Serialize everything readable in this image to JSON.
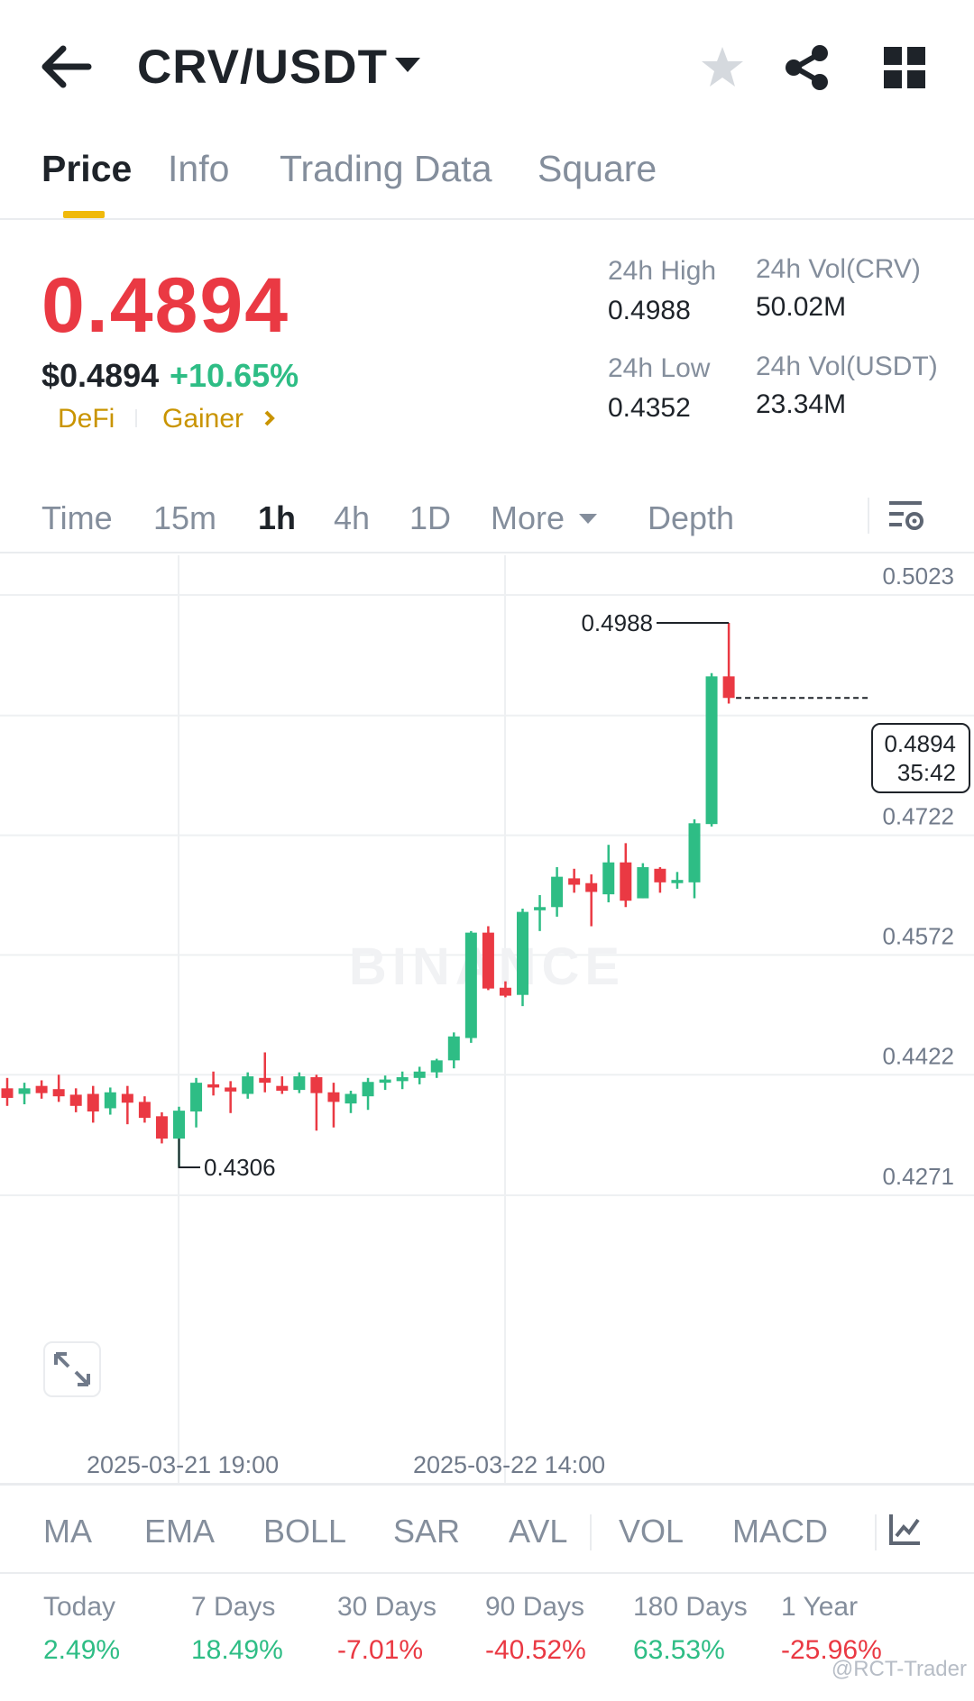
{
  "header": {
    "pair": "CRV/USDT",
    "icons": {
      "back": "arrow-left-icon",
      "favorite": "star-icon",
      "share": "share-icon",
      "grid": "grid-icon"
    }
  },
  "tabs": [
    {
      "label": "Price",
      "active": true
    },
    {
      "label": "Info"
    },
    {
      "label": "Trading Data"
    },
    {
      "label": "Square"
    }
  ],
  "price": {
    "last": "0.4894",
    "usd": "$0.4894",
    "change": "+10.65%",
    "tags": [
      "DeFi",
      "Gainer"
    ],
    "colors": {
      "down": "#ea3943",
      "up": "#2ebd85",
      "tag": "#c99400"
    }
  },
  "stats": {
    "high_label": "24h High",
    "high": "0.4988",
    "low_label": "24h Low",
    "low": "0.4352",
    "vol_base_label": "24h Vol(CRV)",
    "vol_base": "50.02M",
    "vol_quote_label": "24h Vol(USDT)",
    "vol_quote": "23.34M"
  },
  "toolbar": {
    "items": [
      "Time",
      "15m",
      "1h",
      "4h",
      "1D",
      "More",
      "Depth"
    ],
    "active": "1h",
    "settings_icon": "chart-settings-icon"
  },
  "chart_labels": {
    "watermark": "BINANCE",
    "y_ticks": [
      "0.5023",
      "0.4722",
      "0.4572",
      "0.4422",
      "0.4271"
    ],
    "x_ticks": [
      "2025-03-21 19:00",
      "2025-03-22 14:00"
    ],
    "high_marker": "0.4988",
    "low_marker": "0.4306",
    "current_price": "0.4894",
    "countdown": "35:42"
  },
  "chart_data": {
    "type": "candlestick",
    "ylim": [
      0.4271,
      0.5023
    ],
    "y_ticks": [
      0.5023,
      0.4722,
      0.4572,
      0.4422,
      0.4271
    ],
    "x_ticks": [
      "2025-03-21 19:00",
      "2025-03-22 14:00"
    ],
    "candles": [
      {
        "o": 0.4405,
        "h": 0.4418,
        "l": 0.4383,
        "c": 0.4393
      },
      {
        "o": 0.4398,
        "h": 0.4412,
        "l": 0.4385,
        "c": 0.4405
      },
      {
        "o": 0.4408,
        "h": 0.4415,
        "l": 0.4392,
        "c": 0.4399
      },
      {
        "o": 0.4404,
        "h": 0.4422,
        "l": 0.4388,
        "c": 0.4395
      },
      {
        "o": 0.4397,
        "h": 0.4405,
        "l": 0.4375,
        "c": 0.4383
      },
      {
        "o": 0.4398,
        "h": 0.4408,
        "l": 0.4362,
        "c": 0.4376
      },
      {
        "o": 0.438,
        "h": 0.4406,
        "l": 0.4372,
        "c": 0.44
      },
      {
        "o": 0.4398,
        "h": 0.4408,
        "l": 0.436,
        "c": 0.4387
      },
      {
        "o": 0.4388,
        "h": 0.4395,
        "l": 0.4362,
        "c": 0.4368
      },
      {
        "o": 0.437,
        "h": 0.4375,
        "l": 0.4336,
        "c": 0.4342
      },
      {
        "o": 0.4342,
        "h": 0.4382,
        "l": 0.4306,
        "c": 0.4377
      },
      {
        "o": 0.4376,
        "h": 0.4418,
        "l": 0.4356,
        "c": 0.4412
      },
      {
        "o": 0.441,
        "h": 0.4426,
        "l": 0.4396,
        "c": 0.4406
      },
      {
        "o": 0.4406,
        "h": 0.4414,
        "l": 0.4374,
        "c": 0.4401
      },
      {
        "o": 0.4398,
        "h": 0.4425,
        "l": 0.4392,
        "c": 0.442
      },
      {
        "o": 0.4418,
        "h": 0.445,
        "l": 0.44,
        "c": 0.4412
      },
      {
        "o": 0.4408,
        "h": 0.442,
        "l": 0.4398,
        "c": 0.4402
      },
      {
        "o": 0.4403,
        "h": 0.4425,
        "l": 0.4399,
        "c": 0.442
      },
      {
        "o": 0.4419,
        "h": 0.4422,
        "l": 0.4352,
        "c": 0.4399
      },
      {
        "o": 0.44,
        "h": 0.4412,
        "l": 0.4356,
        "c": 0.4388
      },
      {
        "o": 0.4386,
        "h": 0.4402,
        "l": 0.4374,
        "c": 0.4398
      },
      {
        "o": 0.4395,
        "h": 0.4418,
        "l": 0.4378,
        "c": 0.4413
      },
      {
        "o": 0.4412,
        "h": 0.4421,
        "l": 0.4403,
        "c": 0.4416
      },
      {
        "o": 0.4414,
        "h": 0.4426,
        "l": 0.4404,
        "c": 0.4419
      },
      {
        "o": 0.4418,
        "h": 0.4432,
        "l": 0.441,
        "c": 0.4426
      },
      {
        "o": 0.4425,
        "h": 0.4442,
        "l": 0.4418,
        "c": 0.444
      },
      {
        "o": 0.444,
        "h": 0.4475,
        "l": 0.443,
        "c": 0.447
      },
      {
        "o": 0.4468,
        "h": 0.4602,
        "l": 0.4462,
        "c": 0.46
      },
      {
        "o": 0.46,
        "h": 0.4608,
        "l": 0.4528,
        "c": 0.453
      },
      {
        "o": 0.4531,
        "h": 0.4539,
        "l": 0.4519,
        "c": 0.4521
      },
      {
        "o": 0.4522,
        "h": 0.463,
        "l": 0.4508,
        "c": 0.4626
      },
      {
        "o": 0.4628,
        "h": 0.4647,
        "l": 0.4602,
        "c": 0.4632
      },
      {
        "o": 0.4632,
        "h": 0.4682,
        "l": 0.462,
        "c": 0.467
      },
      {
        "o": 0.4668,
        "h": 0.468,
        "l": 0.465,
        "c": 0.466
      },
      {
        "o": 0.4662,
        "h": 0.4673,
        "l": 0.4608,
        "c": 0.4651
      },
      {
        "o": 0.4648,
        "h": 0.471,
        "l": 0.4638,
        "c": 0.4688
      },
      {
        "o": 0.4688,
        "h": 0.4712,
        "l": 0.4632,
        "c": 0.464
      },
      {
        "o": 0.4643,
        "h": 0.4687,
        "l": 0.4643,
        "c": 0.4682
      },
      {
        "o": 0.468,
        "h": 0.4682,
        "l": 0.465,
        "c": 0.4663
      },
      {
        "o": 0.4662,
        "h": 0.4676,
        "l": 0.4655,
        "c": 0.4666
      },
      {
        "o": 0.4663,
        "h": 0.4742,
        "l": 0.4643,
        "c": 0.4737
      },
      {
        "o": 0.4736,
        "h": 0.4925,
        "l": 0.4733,
        "c": 0.4921
      },
      {
        "o": 0.4921,
        "h": 0.4988,
        "l": 0.4887,
        "c": 0.4894
      }
    ]
  },
  "indicators": [
    "MA",
    "EMA",
    "BOLL",
    "SAR",
    "AVL",
    "VOL",
    "MACD"
  ],
  "performance": [
    {
      "label": "Today",
      "value": "2.49%",
      "color": "#2ebd85"
    },
    {
      "label": "7 Days",
      "value": "18.49%",
      "color": "#2ebd85"
    },
    {
      "label": "30 Days",
      "value": "-7.01%",
      "color": "#ea3943"
    },
    {
      "label": "90 Days",
      "value": "-40.52%",
      "color": "#ea3943"
    },
    {
      "label": "180 Days",
      "value": "63.53%",
      "color": "#2ebd85"
    },
    {
      "label": "1 Year",
      "value": "-25.96%",
      "color": "#ea3943"
    }
  ],
  "watermark_text": "@RCT-Trader"
}
